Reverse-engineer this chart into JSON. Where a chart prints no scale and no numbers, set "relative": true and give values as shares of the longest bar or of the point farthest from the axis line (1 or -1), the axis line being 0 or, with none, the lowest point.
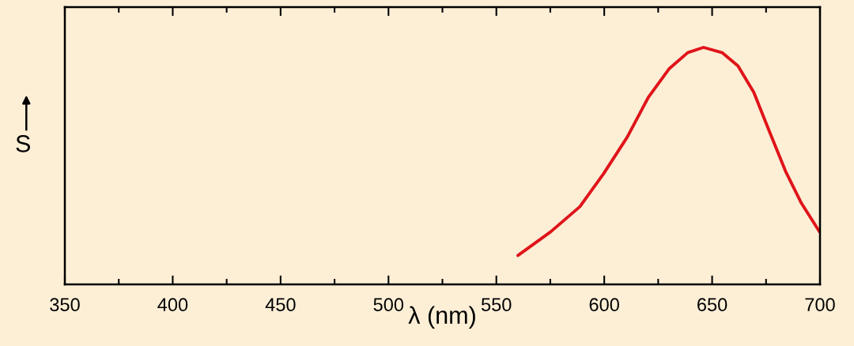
{
  "chart_data": {
    "type": "line",
    "relative": true,
    "xlabel": "λ (nm)",
    "ylabel": "S",
    "xlim": [
      350,
      700
    ],
    "xticks": [
      350,
      {
        "value": 375,
        "label": null
      },
      400,
      {
        "value": 425,
        "label": null
      },
      450,
      {
        "value": 475,
        "label": null
      },
      500,
      {
        "value": 525,
        "label": null
      },
      550,
      {
        "value": 575,
        "label": null
      },
      600,
      {
        "value": 625,
        "label": null
      },
      650,
      {
        "value": 675,
        "label": null
      },
      700
    ],
    "grid": false,
    "legend": false,
    "marker": "none",
    "line_style": "solid",
    "series": [
      {
        "color": "#e0141a",
        "x": [
          560,
          575.2,
          588.7,
          599.7,
          610.7,
          620.4,
          630.2,
          638.7,
          646,
          654.6,
          662,
          669.3,
          676.6,
          684,
          691.3,
          699.8
        ],
        "values": [
          0.122,
          0.222,
          0.328,
          0.467,
          0.622,
          0.789,
          0.911,
          0.978,
          1.0,
          0.978,
          0.922,
          0.811,
          0.644,
          0.478,
          0.344,
          0.222
        ]
      }
    ]
  }
}
